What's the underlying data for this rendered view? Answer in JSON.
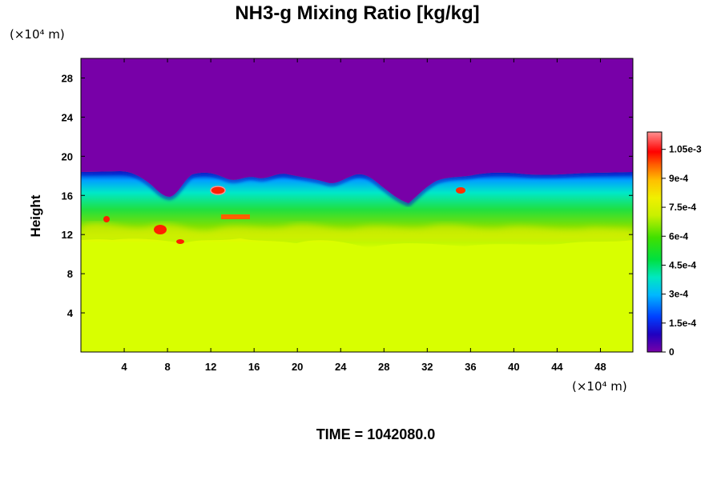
{
  "chart_data": {
    "type": "heatmap",
    "title": "NH3-g Mixing Ratio [kg/kg]",
    "xlabel": "",
    "ylabel": "Height",
    "x_unit": "(×10⁴ m)",
    "y_unit": "(×10⁴ m)",
    "xlim": [
      0,
      51
    ],
    "ylim": [
      0,
      30
    ],
    "x_ticks": [
      4,
      8,
      12,
      16,
      20,
      24,
      28,
      32,
      36,
      40,
      44,
      48
    ],
    "y_ticks": [
      4,
      8,
      12,
      16,
      20,
      24,
      28
    ],
    "colorbar": {
      "range": [
        0,
        0.00114
      ],
      "tick_values": [
        0,
        0.00015,
        0.0003,
        0.00045,
        0.0006,
        0.00075,
        0.0009,
        0.00105
      ],
      "tick_labels": [
        "0",
        "1.5e-4",
        "3e-4",
        "4.5e-4",
        "6e-4",
        "7.5e-4",
        "9e-4",
        "1.05e-3"
      ]
    },
    "field_regions": [
      {
        "region": "above cloud top (~18 x10^4 m)",
        "value": 0
      },
      {
        "region": "mixing layer 12-18 x10^4 m",
        "value_range": [
          0.00015,
          0.0009
        ]
      },
      {
        "region": "below ~11 x10^4 m",
        "value": 0.00078
      }
    ],
    "hotspots": [
      {
        "x": 12.5,
        "y": 16.3,
        "value": 0.0011
      },
      {
        "x": 7.5,
        "y": 12.4,
        "value": 0.00105
      },
      {
        "x": 35.2,
        "y": 16.2,
        "value": 0.001
      },
      {
        "x": 14,
        "y": 13.6,
        "value": 0.00092
      },
      {
        "x": 2.5,
        "y": 13.2,
        "value": 0.00095
      },
      {
        "x": 9.5,
        "y": 11.5,
        "value": 0.00095
      }
    ],
    "footer": "TIME = 1042080.0"
  }
}
